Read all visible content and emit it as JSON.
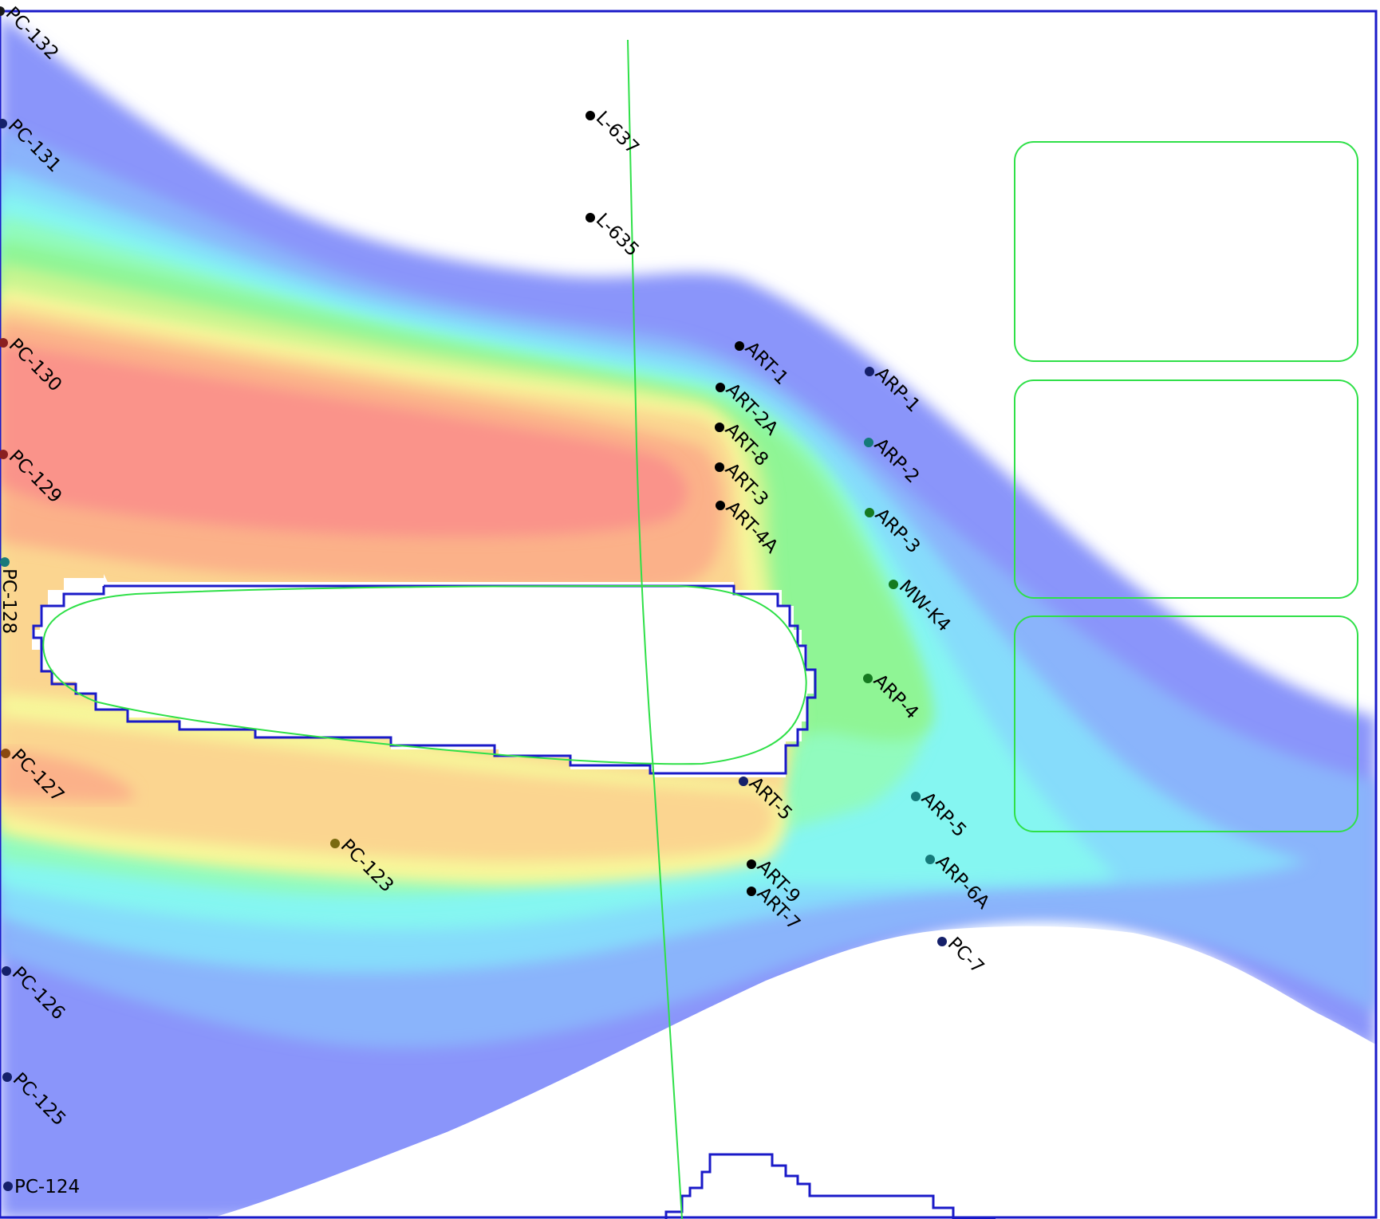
{
  "colors": {
    "band_outer": "#8a95fa",
    "band_2": "#8ab4fb",
    "band_3": "#86dcfb",
    "band_4": "#85f6f1",
    "band_5": "#91fbbe",
    "band_6": "#8ff595",
    "band_7": "#c7f590",
    "band_8": "#f7f79a",
    "band_9": "#fbd590",
    "band_10": "#fbb189",
    "band_core": "#fa938a",
    "grid_boundary": "#1a1ac8",
    "feature_line": "#2fe048"
  },
  "wells": [
    {
      "id": "PC-132",
      "color": "#1a1a1a"
    },
    {
      "id": "PC-131",
      "color": "#15206a"
    },
    {
      "id": "PC-130",
      "color": "#8a2020"
    },
    {
      "id": "PC-129",
      "color": "#8a2020"
    },
    {
      "id": "PC-128",
      "color": "#1a7a7a"
    },
    {
      "id": "PC-127",
      "color": "#8a4a10"
    },
    {
      "id": "PC-126",
      "color": "#15206a"
    },
    {
      "id": "PC-125",
      "color": "#15206a"
    },
    {
      "id": "PC-124",
      "color": "#15206a"
    },
    {
      "id": "PC-123",
      "color": "#7a6a10"
    },
    {
      "id": "L-637",
      "color": "#000000"
    },
    {
      "id": "L-635",
      "color": "#000000"
    },
    {
      "id": "ART-1",
      "color": "#000000"
    },
    {
      "id": "ART-2A",
      "color": "#000000"
    },
    {
      "id": "ART-8",
      "color": "#000000"
    },
    {
      "id": "ART-3",
      "color": "#000000"
    },
    {
      "id": "ART-4A",
      "color": "#000000"
    },
    {
      "id": "ART-5",
      "color": "#15206a"
    },
    {
      "id": "ART-9",
      "color": "#000000"
    },
    {
      "id": "ART-7",
      "color": "#000000"
    },
    {
      "id": "ARP-1",
      "color": "#15206a"
    },
    {
      "id": "ARP-2",
      "color": "#157a7a"
    },
    {
      "id": "ARP-3",
      "color": "#157a20"
    },
    {
      "id": "MW-K4",
      "color": "#157a20"
    },
    {
      "id": "ARP-4",
      "color": "#157a20"
    },
    {
      "id": "ARP-5",
      "color": "#157a7a"
    },
    {
      "id": "ARP-6A",
      "color": "#157a7a"
    },
    {
      "id": "PC-7",
      "color": "#15206a"
    }
  ]
}
